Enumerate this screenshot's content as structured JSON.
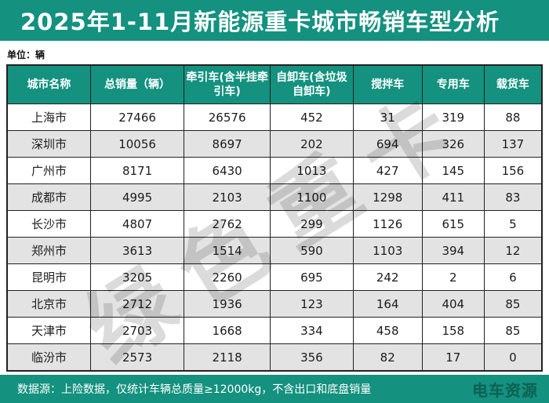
{
  "title": "2025年1-11月新能源重卡城市畅销车型分析",
  "unit_label": "单位：辆",
  "watermark": "绿色重卡",
  "footer": {
    "note": "数据源：上险数据，仅统计车辆总质量≥12000kg，不含出口和底盘销量",
    "logo": "电车资源"
  },
  "colors": {
    "accent_teal": "#14917F",
    "row_alt_gray": "#E3E3E3",
    "border_dark": "#222222",
    "title_text": "#FFFFFF"
  },
  "chart_data": {
    "type": "table",
    "title": "2025年1-11月新能源重卡城市畅销车型分析",
    "unit": "辆",
    "columns": [
      "城市名称",
      "总销量（辆）",
      "牵引车(含半挂牵引车)",
      "自卸车(含垃圾自卸车)",
      "搅拌车",
      "专用车",
      "载货车"
    ],
    "column_widths_pct": [
      15.6,
      17.5,
      16.1,
      15.5,
      12.9,
      11.6,
      10.8
    ],
    "rows": [
      [
        "上海市",
        27466,
        26576,
        452,
        31,
        319,
        88
      ],
      [
        "深圳市",
        10056,
        8697,
        202,
        694,
        326,
        137
      ],
      [
        "广州市",
        8171,
        6430,
        1013,
        427,
        145,
        156
      ],
      [
        "成都市",
        4995,
        2103,
        1100,
        1298,
        411,
        83
      ],
      [
        "长沙市",
        4807,
        2762,
        299,
        1126,
        615,
        5
      ],
      [
        "郑州市",
        3613,
        1514,
        590,
        1103,
        394,
        12
      ],
      [
        "昆明市",
        3205,
        2260,
        695,
        242,
        2,
        6
      ],
      [
        "北京市",
        2712,
        1936,
        123,
        164,
        404,
        85
      ],
      [
        "天津市",
        2703,
        1668,
        334,
        458,
        158,
        85
      ],
      [
        "临汾市",
        2573,
        2118,
        356,
        82,
        17,
        0
      ]
    ]
  }
}
